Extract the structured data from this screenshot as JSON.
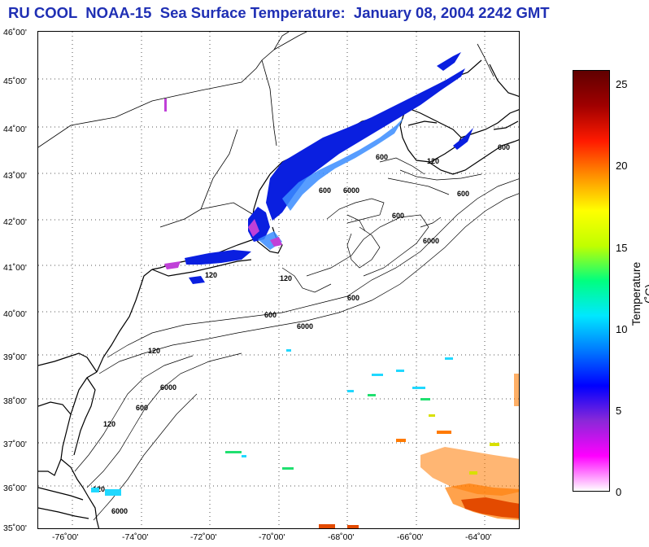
{
  "title": "RU COOL  NOAA-15  Sea Surface Temperature:  January 08, 2004 2242 GMT",
  "latitude_labels": [
    "46˚00'",
    "45˚00'",
    "44˚00'",
    "43˚00'",
    "42˚00'",
    "41˚00'",
    "40˚00'",
    "39˚00'",
    "38˚00'",
    "37˚00'",
    "36˚00'",
    "35˚00'"
  ],
  "longitude_labels": [
    "-76˚00'",
    "-74˚00'",
    "-72˚00'",
    "-70˚00'",
    "-68˚00'",
    "-66˚00'",
    "-64˚00'"
  ],
  "colorbar": {
    "label": "Temperature (˚C)",
    "ticks": [
      "25",
      "20",
      "15",
      "10",
      "5",
      "0"
    ],
    "range": [
      0,
      26
    ],
    "colors": [
      "#ffffff",
      "#ff00ff",
      "#8a28d8",
      "#0000ff",
      "#0078ff",
      "#00e8ff",
      "#00ff80",
      "#c0ff00",
      "#ffff00",
      "#ff9000",
      "#ff1a00",
      "#a00000",
      "#600000"
    ]
  },
  "isobaths": [
    "6000",
    "600",
    "6000",
    "120",
    "600",
    "120",
    "600",
    "6000",
    "600",
    "120",
    "600",
    "120",
    "600",
    "600",
    "6000",
    "6000",
    "600",
    "120",
    "120"
  ],
  "map": {
    "lat_range": [
      35,
      46
    ],
    "lon_range": [
      -77,
      -63
    ],
    "grid": "dotted",
    "data_colors": {
      "cold": "#0a1fe0",
      "cool": "#3a8cff",
      "warm": "#ff7a00",
      "hot": "#e34a00",
      "land": "#ffffff",
      "coast": "#000000"
    }
  }
}
